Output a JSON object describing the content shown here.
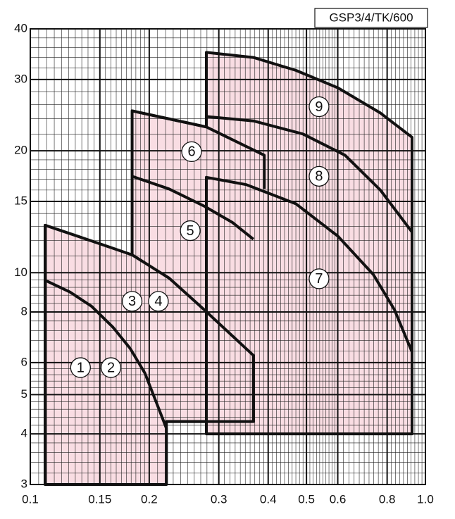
{
  "chart_data": {
    "type": "region",
    "title": "GSP3/4/TK/600",
    "xscale": "log",
    "yscale": "log",
    "grid": true,
    "minor_grid": true,
    "color": "#f9dde3",
    "xlim": [
      0.1,
      1.0
    ],
    "ylim": [
      3,
      40
    ],
    "xticks": [
      0.1,
      0.15,
      0.2,
      0.3,
      0.4,
      0.5,
      0.6,
      0.8,
      {
        "value": 1,
        "label": "1.0"
      }
    ],
    "yticks": [
      3,
      4,
      5,
      6,
      8,
      10,
      15,
      20,
      30,
      40
    ],
    "area": {
      "x": [
        0.109,
        0.109,
        0.132,
        0.181,
        0.181,
        0.279,
        0.279,
        0.367,
        0.47,
        0.601,
        0.769,
        0.925,
        0.925,
        0.279,
        0.279,
        0.221,
        0.221
      ],
      "y": [
        3,
        13.1,
        12.3,
        11.07,
        25.1,
        22.9,
        35.0,
        34.0,
        31.6,
        28.6,
        24.8,
        21.6,
        4.0,
        4.0,
        4.29,
        4.29,
        3
      ]
    },
    "lines": [
      {
        "x": [
          0.109,
          0.126,
          0.143,
          0.162,
          0.179,
          0.195,
          0.208,
          0.221,
          0.221
        ],
        "y": [
          9.58,
          8.96,
          8.26,
          7.33,
          6.5,
          5.65,
          4.81,
          4.13,
          3
        ]
      },
      {
        "x": [
          0.181,
          0.2245,
          0.2756,
          0.367,
          0.367,
          0.221
        ],
        "y": [
          11.07,
          9.7,
          8.1,
          6.25,
          4.29,
          4.29
        ]
      },
      {
        "x": [
          0.181,
          0.2245,
          0.2756,
          0.325,
          0.367
        ],
        "y": [
          17.3,
          16.1,
          14.6,
          13.3,
          12.1
        ]
      },
      {
        "x": [
          0.181,
          0.279,
          0.391,
          0.391
        ],
        "y": [
          25.1,
          22.9,
          19.5,
          16.1
        ]
      },
      {
        "x": [
          0.279,
          0.279,
          0.352,
          0.47,
          0.601,
          0.738,
          0.835,
          0.925
        ],
        "y": [
          4.0,
          17.2,
          16.5,
          14.8,
          12.3,
          9.9,
          8.1,
          6.37
        ]
      },
      {
        "x": [
          0.279,
          0.367,
          0.49,
          0.626,
          0.769,
          0.925
        ],
        "y": [
          24.3,
          23.7,
          22.0,
          19.5,
          16.0,
          12.6
        ]
      }
    ],
    "labels": [
      {
        "text": "1",
        "x": 0.134,
        "y": 5.83
      },
      {
        "text": "2",
        "x": 0.16,
        "y": 5.83
      },
      {
        "text": "3",
        "x": 0.181,
        "y": 8.5
      },
      {
        "text": "4",
        "x": 0.211,
        "y": 8.5
      },
      {
        "text": "5",
        "x": 0.254,
        "y": 12.7
      },
      {
        "text": "6",
        "x": 0.256,
        "y": 19.9
      },
      {
        "text": "7",
        "x": 0.538,
        "y": 9.66
      },
      {
        "text": "8",
        "x": 0.538,
        "y": 17.3
      },
      {
        "text": "9",
        "x": 0.538,
        "y": 25.7
      }
    ]
  }
}
